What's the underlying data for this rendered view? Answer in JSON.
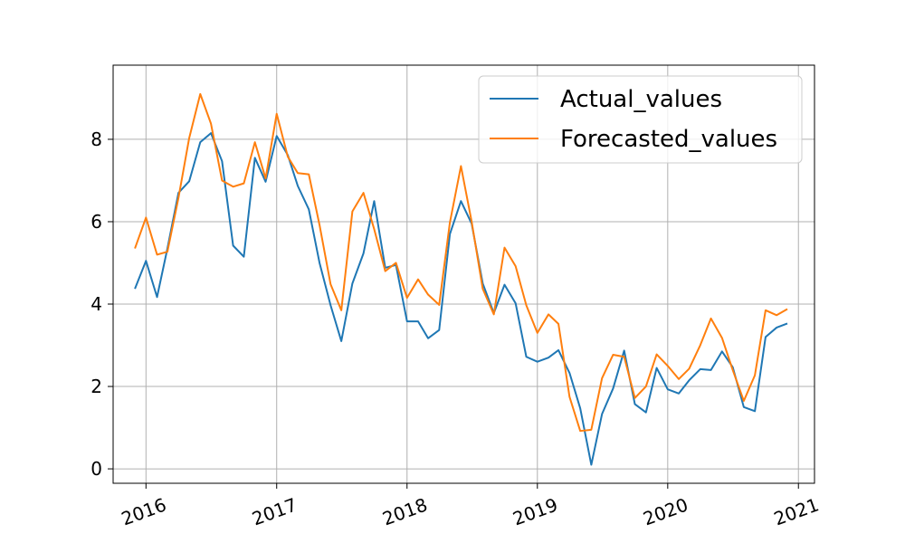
{
  "chart_data": {
    "type": "line",
    "x_ticks": [
      "2016",
      "2017",
      "2018",
      "2019",
      "2020",
      "2021"
    ],
    "x_range": [
      "2015-10-01",
      "2021-02-15"
    ],
    "y_ticks": [
      0,
      2,
      4,
      6,
      8
    ],
    "ylim": [
      -0.35,
      9.8
    ],
    "grid": true,
    "legend_position": "top-right",
    "series": [
      {
        "name": "Actual_values",
        "color": "#1f77b4",
        "points": [
          [
            "2015-12-01",
            4.37
          ],
          [
            "2016-01-01",
            5.05
          ],
          [
            "2016-02-01",
            4.17
          ],
          [
            "2016-03-01",
            5.35
          ],
          [
            "2016-04-01",
            6.7
          ],
          [
            "2016-05-01",
            6.98
          ],
          [
            "2016-06-01",
            7.93
          ],
          [
            "2016-07-01",
            8.15
          ],
          [
            "2016-08-01",
            7.47
          ],
          [
            "2016-09-01",
            5.42
          ],
          [
            "2016-10-01",
            5.15
          ],
          [
            "2016-11-01",
            7.55
          ],
          [
            "2016-12-01",
            6.97
          ],
          [
            "2017-01-01",
            8.08
          ],
          [
            "2017-02-01",
            7.62
          ],
          [
            "2017-03-01",
            6.87
          ],
          [
            "2017-04-01",
            6.3
          ],
          [
            "2017-05-01",
            5.0
          ],
          [
            "2017-06-01",
            3.97
          ],
          [
            "2017-07-01",
            3.1
          ],
          [
            "2017-08-01",
            4.5
          ],
          [
            "2017-09-01",
            5.23
          ],
          [
            "2017-10-01",
            6.5
          ],
          [
            "2017-11-01",
            4.88
          ],
          [
            "2017-12-01",
            4.95
          ],
          [
            "2018-01-01",
            3.58
          ],
          [
            "2018-02-01",
            3.58
          ],
          [
            "2018-03-01",
            3.17
          ],
          [
            "2018-04-01",
            3.37
          ],
          [
            "2018-05-01",
            5.7
          ],
          [
            "2018-06-01",
            6.5
          ],
          [
            "2018-07-01",
            5.95
          ],
          [
            "2018-08-01",
            4.5
          ],
          [
            "2018-09-01",
            3.78
          ],
          [
            "2018-10-01",
            4.47
          ],
          [
            "2018-11-01",
            4.02
          ],
          [
            "2018-12-01",
            2.72
          ],
          [
            "2019-01-01",
            2.6
          ],
          [
            "2019-02-01",
            2.7
          ],
          [
            "2019-03-01",
            2.88
          ],
          [
            "2019-04-01",
            2.33
          ],
          [
            "2019-05-01",
            1.47
          ],
          [
            "2019-06-01",
            0.1
          ],
          [
            "2019-07-01",
            1.33
          ],
          [
            "2019-08-01",
            1.95
          ],
          [
            "2019-09-01",
            2.87
          ],
          [
            "2019-10-01",
            1.57
          ],
          [
            "2019-11-01",
            1.37
          ],
          [
            "2019-12-01",
            2.45
          ],
          [
            "2020-01-01",
            1.93
          ],
          [
            "2020-02-01",
            1.83
          ],
          [
            "2020-03-01",
            2.15
          ],
          [
            "2020-04-01",
            2.42
          ],
          [
            "2020-05-01",
            2.4
          ],
          [
            "2020-06-01",
            2.85
          ],
          [
            "2020-07-01",
            2.47
          ],
          [
            "2020-08-01",
            1.5
          ],
          [
            "2020-09-01",
            1.4
          ],
          [
            "2020-10-01",
            3.2
          ],
          [
            "2020-11-01",
            3.43
          ],
          [
            "2020-12-01",
            3.53
          ]
        ]
      },
      {
        "name": "Forecasted_values",
        "color": "#ff7f0e",
        "points": [
          [
            "2015-12-01",
            5.35
          ],
          [
            "2016-01-01",
            6.1
          ],
          [
            "2016-02-01",
            5.2
          ],
          [
            "2016-03-01",
            5.27
          ],
          [
            "2016-04-01",
            6.58
          ],
          [
            "2016-05-01",
            8.03
          ],
          [
            "2016-06-01",
            9.1
          ],
          [
            "2016-07-01",
            8.38
          ],
          [
            "2016-08-01",
            7.0
          ],
          [
            "2016-09-01",
            6.85
          ],
          [
            "2016-10-01",
            6.93
          ],
          [
            "2016-11-01",
            7.93
          ],
          [
            "2016-12-01",
            7.05
          ],
          [
            "2017-01-01",
            8.62
          ],
          [
            "2017-02-01",
            7.58
          ],
          [
            "2017-03-01",
            7.18
          ],
          [
            "2017-04-01",
            7.15
          ],
          [
            "2017-05-01",
            5.92
          ],
          [
            "2017-06-01",
            4.48
          ],
          [
            "2017-07-01",
            3.85
          ],
          [
            "2017-08-01",
            6.25
          ],
          [
            "2017-09-01",
            6.7
          ],
          [
            "2017-10-01",
            5.82
          ],
          [
            "2017-11-01",
            4.8
          ],
          [
            "2017-12-01",
            5.0
          ],
          [
            "2018-01-01",
            4.15
          ],
          [
            "2018-02-01",
            4.6
          ],
          [
            "2018-03-01",
            4.23
          ],
          [
            "2018-04-01",
            3.98
          ],
          [
            "2018-05-01",
            5.98
          ],
          [
            "2018-06-01",
            7.35
          ],
          [
            "2018-07-01",
            6.0
          ],
          [
            "2018-08-01",
            4.37
          ],
          [
            "2018-09-01",
            3.75
          ],
          [
            "2018-10-01",
            5.37
          ],
          [
            "2018-11-01",
            4.92
          ],
          [
            "2018-12-01",
            3.97
          ],
          [
            "2019-01-01",
            3.3
          ],
          [
            "2019-02-01",
            3.75
          ],
          [
            "2019-03-01",
            3.52
          ],
          [
            "2019-04-01",
            1.75
          ],
          [
            "2019-05-01",
            0.92
          ],
          [
            "2019-06-01",
            0.95
          ],
          [
            "2019-07-01",
            2.2
          ],
          [
            "2019-08-01",
            2.77
          ],
          [
            "2019-09-01",
            2.72
          ],
          [
            "2019-10-01",
            1.72
          ],
          [
            "2019-11-01",
            2.0
          ],
          [
            "2019-12-01",
            2.78
          ],
          [
            "2020-01-01",
            2.5
          ],
          [
            "2020-02-01",
            2.18
          ],
          [
            "2020-03-01",
            2.43
          ],
          [
            "2020-04-01",
            3.0
          ],
          [
            "2020-05-01",
            3.65
          ],
          [
            "2020-06-01",
            3.18
          ],
          [
            "2020-07-01",
            2.4
          ],
          [
            "2020-08-01",
            1.65
          ],
          [
            "2020-09-01",
            2.27
          ],
          [
            "2020-10-01",
            3.85
          ],
          [
            "2020-11-01",
            3.73
          ],
          [
            "2020-12-01",
            3.88
          ]
        ]
      }
    ]
  }
}
